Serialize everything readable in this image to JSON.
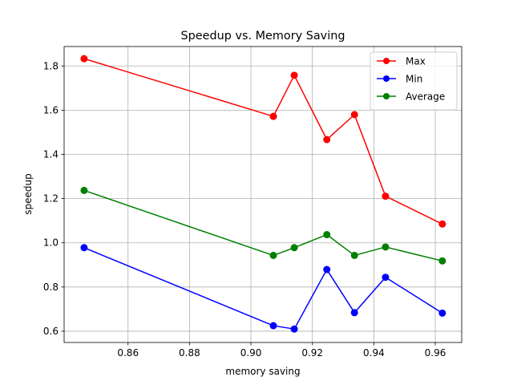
{
  "chart_data": {
    "type": "line",
    "title": "Speedup vs. Memory Saving",
    "xlabel": "memory saving",
    "ylabel": "speedup",
    "xlim": [
      0.8392,
      0.9686
    ],
    "ylim": [
      0.549,
      1.888
    ],
    "xticks": [
      0.86,
      0.88,
      0.9,
      0.92,
      0.94,
      0.96
    ],
    "xtick_labels": [
      "0.86",
      "0.88",
      "0.90",
      "0.92",
      "0.94",
      "0.96"
    ],
    "yticks": [
      0.6,
      0.8,
      1.0,
      1.2,
      1.4,
      1.6,
      1.8
    ],
    "ytick_labels": [
      "0.6",
      "0.8",
      "1.0",
      "1.2",
      "1.4",
      "1.6",
      "1.8"
    ],
    "grid": true,
    "legend_position": "top-right",
    "x": [
      0.8457,
      0.9073,
      0.9141,
      0.9247,
      0.9337,
      0.9438,
      0.9623
    ],
    "series": [
      {
        "name": "Max",
        "color": "#ff0000",
        "values": [
          1.833,
          1.572,
          1.758,
          1.467,
          1.58,
          1.211,
          1.085
        ]
      },
      {
        "name": "Min",
        "color": "#0000ff",
        "values": [
          0.978,
          0.625,
          0.61,
          0.879,
          0.684,
          0.844,
          0.682
        ]
      },
      {
        "name": "Average",
        "color": "#008000",
        "values": [
          1.237,
          0.943,
          0.978,
          1.037,
          0.943,
          0.981,
          0.918
        ]
      }
    ]
  }
}
